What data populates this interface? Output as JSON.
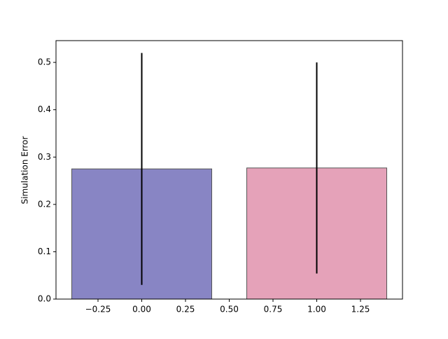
{
  "chart_data": {
    "type": "bar",
    "ylabel": "Simulation Error",
    "x": [
      0,
      1
    ],
    "values": [
      0.275,
      0.277
    ],
    "errors": [
      0.245,
      0.223
    ],
    "colors": [
      "#8885c4",
      "#e5a2b9"
    ],
    "bar_width": 0.8,
    "xlim": [
      -0.49,
      1.49
    ],
    "ylim": [
      0,
      0.546
    ],
    "xticks": [
      {
        "value": -0.25,
        "label": "−0.25"
      },
      {
        "value": 0,
        "label": "0.00"
      },
      {
        "value": 0.25,
        "label": "0.25"
      },
      {
        "value": 0.5,
        "label": "0.50"
      },
      {
        "value": 0.75,
        "label": "0.75"
      },
      {
        "value": 1,
        "label": "1.00"
      },
      {
        "value": 1.25,
        "label": "1.25"
      }
    ],
    "yticks": [
      {
        "value": 0,
        "label": "0.0"
      },
      {
        "value": 0.1,
        "label": "0.1"
      },
      {
        "value": 0.2,
        "label": "0.2"
      },
      {
        "value": 0.3,
        "label": "0.3"
      },
      {
        "value": 0.4,
        "label": "0.4"
      },
      {
        "value": 0.5,
        "label": "0.5"
      }
    ]
  }
}
